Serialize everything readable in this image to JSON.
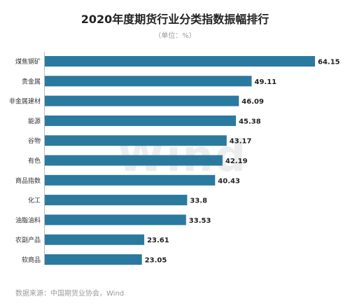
{
  "chart_data": {
    "type": "bar",
    "orientation": "horizontal",
    "title": "2020年度期货行业分类指数振幅排行",
    "subtitle": "（单位：%）",
    "categories": [
      "煤焦钢矿",
      "贵金属",
      "非金属建材",
      "能源",
      "谷物",
      "有色",
      "商品指数",
      "化工",
      "油脂油料",
      "农副产品",
      "软商品"
    ],
    "values": [
      64.15,
      49.11,
      46.09,
      45.38,
      43.17,
      42.19,
      40.43,
      33.8,
      33.53,
      23.61,
      23.05
    ],
    "value_labels": [
      "64.15",
      "49.11",
      "46.09",
      "45.38",
      "43.17",
      "42.19",
      "40.43",
      "33.8",
      "33.53",
      "23.61",
      "23.05"
    ],
    "xlim": [
      0,
      66
    ],
    "grid": false,
    "bar_color": "#2a7aa0"
  },
  "watermark": "Wind",
  "source": "数据来源：中国期货业协会，Wind"
}
